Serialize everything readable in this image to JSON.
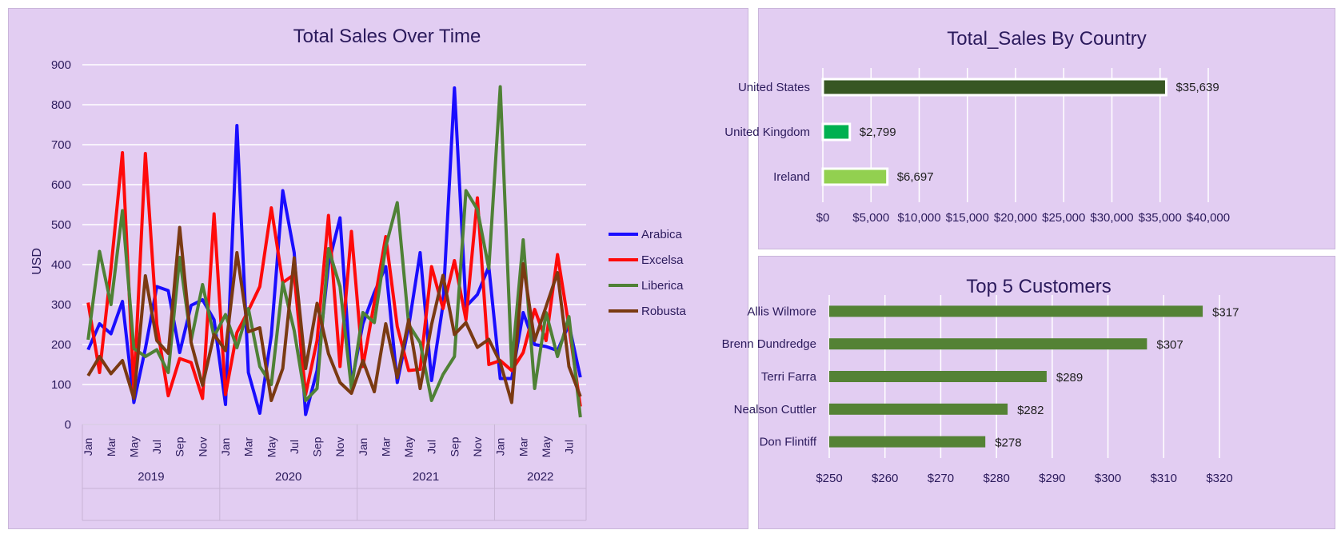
{
  "chart_data": [
    {
      "type": "line",
      "title": "Total Sales Over Time",
      "xlabel": "",
      "ylabel": "USD",
      "ylim": [
        0,
        900
      ],
      "yticks": [
        0,
        100,
        200,
        300,
        400,
        500,
        600,
        700,
        800,
        900
      ],
      "grid": true,
      "legend_position": "right",
      "x": [
        "Jan",
        "Feb",
        "Mar",
        "Apr",
        "May",
        "Jun",
        "Jul",
        "Aug",
        "Sep",
        "Oct",
        "Nov",
        "Dec",
        "Jan",
        "Feb",
        "Mar",
        "Apr",
        "May",
        "Jun",
        "Jul",
        "Aug",
        "Sep",
        "Oct",
        "Nov",
        "Dec",
        "Jan",
        "Feb",
        "Mar",
        "Apr",
        "May",
        "Jun",
        "Jul",
        "Aug",
        "Sep",
        "Oct",
        "Nov",
        "Dec",
        "Jan",
        "Feb",
        "Mar",
        "Apr",
        "May",
        "Jun",
        "Jul",
        "Aug"
      ],
      "x_tick_labels": [
        "Jan",
        "",
        "Mar",
        "",
        "May",
        "",
        "Jul",
        "",
        "Sep",
        "",
        "Nov",
        "",
        "Jan",
        "",
        "Mar",
        "",
        "May",
        "",
        "Jul",
        "",
        "Sep",
        "",
        "Nov",
        "",
        "Jan",
        "",
        "Mar",
        "",
        "May",
        "",
        "Jul",
        "",
        "Sep",
        "",
        "Nov",
        "",
        "Jan",
        "",
        "Mar",
        "",
        "May",
        "",
        "Jul",
        ""
      ],
      "year_groups": [
        {
          "label": "2019",
          "count": 12
        },
        {
          "label": "2020",
          "count": 12
        },
        {
          "label": "2021",
          "count": 12
        },
        {
          "label": "2022",
          "count": 8
        }
      ],
      "series": [
        {
          "name": "Arabica",
          "color": "#1a0dff",
          "values": [
            187,
            252,
            227,
            308,
            55,
            190,
            345,
            335,
            180,
            298,
            312,
            262,
            50,
            748,
            130,
            28,
            223,
            585,
            430,
            25,
            135,
            400,
            517,
            100,
            252,
            330,
            395,
            105,
            245,
            430,
            110,
            300,
            842,
            295,
            325,
            395,
            115,
            115,
            280,
            200,
            195,
            185,
            250,
            118
          ]
        },
        {
          "name": "Excelsa",
          "color": "#ff0a0a",
          "values": [
            305,
            130,
            390,
            680,
            85,
            678,
            250,
            72,
            165,
            155,
            65,
            527,
            75,
            230,
            285,
            345,
            542,
            355,
            375,
            75,
            210,
            523,
            145,
            483,
            145,
            305,
            470,
            245,
            135,
            138,
            395,
            290,
            410,
            262,
            567,
            150,
            160,
            135,
            180,
            288,
            210,
            425,
            245,
            45
          ]
        },
        {
          "name": "Liberica",
          "color": "#4f8136",
          "values": [
            212,
            433,
            300,
            535,
            190,
            170,
            187,
            130,
            418,
            210,
            350,
            220,
            275,
            192,
            290,
            145,
            100,
            355,
            235,
            60,
            90,
            440,
            345,
            90,
            280,
            255,
            445,
            555,
            250,
            205,
            60,
            125,
            170,
            585,
            538,
            390,
            845,
            145,
            462,
            90,
            280,
            170,
            270,
            18
          ]
        },
        {
          "name": "Robusta",
          "color": "#7a3a12",
          "values": [
            122,
            170,
            127,
            160,
            65,
            372,
            210,
            178,
            493,
            205,
            98,
            225,
            185,
            430,
            232,
            242,
            60,
            140,
            417,
            140,
            303,
            177,
            105,
            78,
            160,
            82,
            252,
            117,
            262,
            90,
            250,
            373,
            225,
            255,
            193,
            213,
            155,
            55,
            402,
            210,
            295,
            380,
            145,
            70
          ]
        }
      ]
    },
    {
      "type": "bar",
      "orientation": "horizontal",
      "title": "Total_Sales By Country",
      "categories": [
        "United States",
        "United Kingdom",
        "Ireland"
      ],
      "values": [
        35639,
        2799,
        6697
      ],
      "value_labels": [
        "$35,639",
        "$2,799",
        "$6,697"
      ],
      "bar_colors": [
        "#375623",
        "#00b050",
        "#92d050"
      ],
      "xlim": [
        0,
        40000
      ],
      "xticks": [
        "$0",
        "$5,000",
        "$10,000",
        "$15,000",
        "$20,000",
        "$25,000",
        "$30,000",
        "$35,000",
        "$40,000"
      ],
      "grid": true
    },
    {
      "type": "bar",
      "orientation": "horizontal",
      "title": "Top 5 Customers",
      "categories": [
        "Allis Wilmore",
        "Brenn Dundredge",
        "Terri Farra",
        "Nealson Cuttler",
        "Don Flintiff"
      ],
      "values": [
        317,
        307,
        289,
        282,
        278
      ],
      "value_labels": [
        "$317",
        "$307",
        "$289",
        "$282",
        "$278"
      ],
      "bar_color": "#548235",
      "xlim": [
        250,
        320
      ],
      "xticks": [
        "$250",
        "$260",
        "$270",
        "$280",
        "$290",
        "$300",
        "$310",
        "$320"
      ],
      "grid": true
    }
  ]
}
